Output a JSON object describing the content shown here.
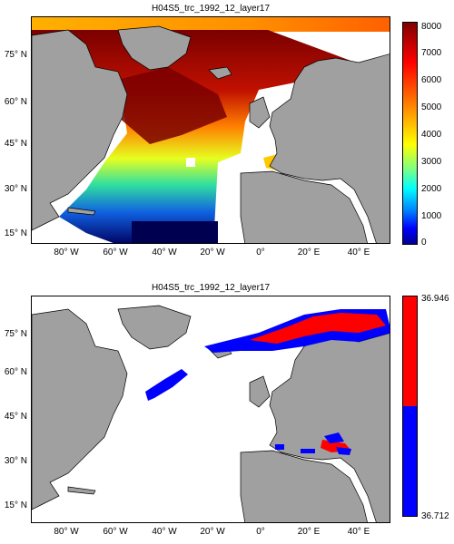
{
  "maps": [
    {
      "title": "H04S5_trc_1992_12_layer17",
      "lat_labels": [
        "75° N",
        "60° N",
        "45° N",
        "30° N",
        "15° N"
      ],
      "lon_labels": [
        "80° W",
        "60° W",
        "40° W",
        "20° W",
        "0°",
        "20° E",
        "40° E"
      ],
      "colorbar": {
        "type": "continuous",
        "colormap": "jet",
        "ticks": [
          "8000",
          "7000",
          "6000",
          "5000",
          "4000",
          "3000",
          "2000",
          "1000",
          "0"
        ]
      }
    },
    {
      "title": "H04S5_trc_1992_12_layer17",
      "lat_labels": [
        "75° N",
        "60° N",
        "45° N",
        "30° N",
        "15° N"
      ],
      "lon_labels": [
        "80° W",
        "60° W",
        "40° W",
        "20° W",
        "0°",
        "20° E",
        "40° E"
      ],
      "colorbar": {
        "type": "two-class",
        "colors": [
          "#ff0000",
          "#0000ff"
        ],
        "ticks": [
          "36.946",
          "36.712"
        ]
      }
    }
  ],
  "colors": {
    "land": "#a0a0a0",
    "ocean_blank": "#ffffff",
    "coast": "#000000"
  }
}
